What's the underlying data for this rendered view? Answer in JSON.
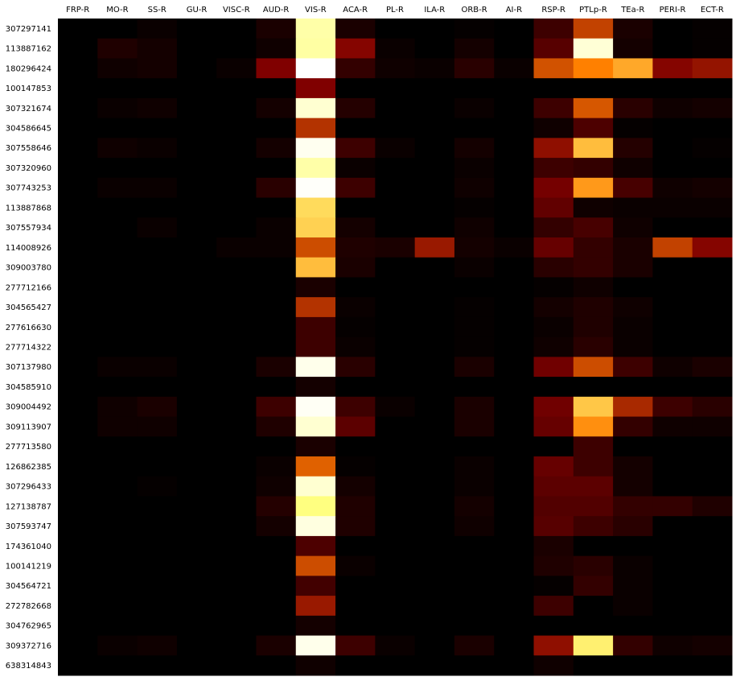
{
  "chart_data": {
    "type": "heatmap",
    "colormap": "afmhot",
    "background": "#000000",
    "columns": [
      "FRP-R",
      "MO-R",
      "SS-R",
      "GU-R",
      "VISC-R",
      "AUD-R",
      "VIS-R",
      "ACA-R",
      "PL-R",
      "ILA-R",
      "ORB-R",
      "AI-R",
      "RSP-R",
      "PTLp-R",
      "TEa-R",
      "PERI-R",
      "ECT-R"
    ],
    "rows": [
      "307297141",
      "113887162",
      "180296424",
      "100147853",
      "307321674",
      "304586645",
      "307558646",
      "307320960",
      "307743253",
      "113887868",
      "307557934",
      "114008926",
      "309003780",
      "277712166",
      "304565427",
      "277616630",
      "277714322",
      "307137980",
      "304585910",
      "309004492",
      "309113907",
      "277713580",
      "126862385",
      "307296433",
      "127138787",
      "307593747",
      "174361040",
      "100141219",
      "304564721",
      "272782668",
      "304762965",
      "309372716",
      "638314843"
    ],
    "values": [
      [
        0.0,
        0.0,
        0.02,
        0.0,
        0.0,
        0.05,
        0.83,
        0.05,
        0.0,
        0.0,
        0.01,
        0.0,
        0.12,
        0.38,
        0.05,
        0.0,
        0.01
      ],
      [
        0.0,
        0.06,
        0.04,
        0.0,
        0.0,
        0.03,
        0.82,
        0.26,
        0.02,
        0.0,
        0.04,
        0.0,
        0.17,
        0.92,
        0.04,
        0.0,
        0.01
      ],
      [
        0.0,
        0.03,
        0.04,
        0.0,
        0.02,
        0.25,
        1.0,
        0.1,
        0.03,
        0.02,
        0.08,
        0.02,
        0.41,
        0.5,
        0.58,
        0.26,
        0.29
      ],
      [
        0.0,
        0.0,
        0.0,
        0.0,
        0.0,
        0.0,
        0.25,
        0.0,
        0.0,
        0.0,
        0.0,
        0.0,
        0.0,
        0.0,
        0.0,
        0.0,
        0.0
      ],
      [
        0.0,
        0.02,
        0.03,
        0.0,
        0.0,
        0.04,
        0.91,
        0.07,
        0.0,
        0.0,
        0.02,
        0.0,
        0.12,
        0.42,
        0.08,
        0.03,
        0.04
      ],
      [
        0.0,
        0.0,
        0.0,
        0.0,
        0.0,
        0.0,
        0.35,
        0.0,
        0.0,
        0.0,
        0.0,
        0.0,
        0.03,
        0.15,
        0.01,
        0.0,
        0.0
      ],
      [
        0.0,
        0.03,
        0.02,
        0.0,
        0.0,
        0.04,
        0.97,
        0.12,
        0.02,
        0.0,
        0.04,
        0.0,
        0.28,
        0.62,
        0.07,
        0.0,
        0.01
      ],
      [
        0.0,
        0.0,
        0.0,
        0.0,
        0.0,
        0.0,
        0.83,
        0.02,
        0.0,
        0.0,
        0.02,
        0.0,
        0.12,
        0.1,
        0.03,
        0.0,
        0.0
      ],
      [
        0.0,
        0.02,
        0.02,
        0.0,
        0.0,
        0.08,
        0.99,
        0.12,
        0.0,
        0.0,
        0.03,
        0.0,
        0.23,
        0.55,
        0.14,
        0.03,
        0.04
      ],
      [
        0.0,
        0.0,
        0.0,
        0.0,
        0.0,
        0.0,
        0.68,
        0.0,
        0.0,
        0.0,
        0.01,
        0.0,
        0.19,
        0.03,
        0.02,
        0.02,
        0.02
      ],
      [
        0.0,
        0.0,
        0.02,
        0.0,
        0.0,
        0.02,
        0.66,
        0.04,
        0.0,
        0.0,
        0.03,
        0.0,
        0.1,
        0.14,
        0.03,
        0.0,
        0.0
      ],
      [
        0.0,
        0.0,
        0.0,
        0.0,
        0.02,
        0.02,
        0.4,
        0.06,
        0.05,
        0.3,
        0.04,
        0.02,
        0.2,
        0.1,
        0.05,
        0.38,
        0.26
      ],
      [
        0.0,
        0.0,
        0.0,
        0.0,
        0.0,
        0.0,
        0.62,
        0.05,
        0.0,
        0.0,
        0.02,
        0.0,
        0.08,
        0.1,
        0.05,
        0.0,
        0.0
      ],
      [
        0.0,
        0.0,
        0.0,
        0.0,
        0.0,
        0.0,
        0.05,
        0.0,
        0.0,
        0.0,
        0.0,
        0.0,
        0.01,
        0.03,
        0.0,
        0.0,
        0.0
      ],
      [
        0.0,
        0.0,
        0.0,
        0.0,
        0.0,
        0.0,
        0.35,
        0.02,
        0.0,
        0.0,
        0.01,
        0.0,
        0.04,
        0.06,
        0.03,
        0.0,
        0.0
      ],
      [
        0.0,
        0.0,
        0.0,
        0.0,
        0.0,
        0.0,
        0.12,
        0.01,
        0.0,
        0.0,
        0.01,
        0.0,
        0.02,
        0.06,
        0.02,
        0.0,
        0.0
      ],
      [
        0.0,
        0.0,
        0.0,
        0.0,
        0.0,
        0.0,
        0.12,
        0.02,
        0.0,
        0.0,
        0.01,
        0.0,
        0.03,
        0.08,
        0.02,
        0.0,
        0.0
      ],
      [
        0.0,
        0.02,
        0.02,
        0.0,
        0.0,
        0.05,
        0.96,
        0.08,
        0.0,
        0.0,
        0.05,
        0.0,
        0.22,
        0.4,
        0.12,
        0.03,
        0.05
      ],
      [
        0.0,
        0.0,
        0.0,
        0.0,
        0.0,
        0.0,
        0.04,
        0.0,
        0.0,
        0.0,
        0.0,
        0.0,
        0.0,
        0.0,
        0.0,
        0.0,
        0.0
      ],
      [
        0.0,
        0.03,
        0.05,
        0.0,
        0.0,
        0.12,
        0.98,
        0.12,
        0.02,
        0.0,
        0.05,
        0.0,
        0.22,
        0.64,
        0.33,
        0.12,
        0.08
      ],
      [
        0.0,
        0.03,
        0.03,
        0.0,
        0.0,
        0.06,
        0.91,
        0.18,
        0.0,
        0.0,
        0.05,
        0.0,
        0.2,
        0.53,
        0.1,
        0.03,
        0.03
      ],
      [
        0.0,
        0.0,
        0.0,
        0.0,
        0.0,
        0.0,
        0.05,
        0.0,
        0.0,
        0.0,
        0.0,
        0.0,
        0.0,
        0.12,
        0.0,
        0.0,
        0.0
      ],
      [
        0.0,
        0.0,
        0.0,
        0.0,
        0.0,
        0.02,
        0.44,
        0.01,
        0.0,
        0.0,
        0.02,
        0.0,
        0.2,
        0.12,
        0.04,
        0.0,
        0.0
      ],
      [
        0.0,
        0.0,
        0.01,
        0.0,
        0.0,
        0.03,
        0.91,
        0.04,
        0.0,
        0.0,
        0.02,
        0.0,
        0.18,
        0.18,
        0.04,
        0.0,
        0.0
      ],
      [
        0.0,
        0.0,
        0.0,
        0.0,
        0.0,
        0.07,
        0.75,
        0.06,
        0.0,
        0.0,
        0.04,
        0.0,
        0.16,
        0.16,
        0.1,
        0.1,
        0.06
      ],
      [
        0.0,
        0.0,
        0.0,
        0.0,
        0.0,
        0.04,
        0.94,
        0.06,
        0.0,
        0.0,
        0.03,
        0.0,
        0.17,
        0.12,
        0.08,
        0.0,
        0.0
      ],
      [
        0.0,
        0.0,
        0.0,
        0.0,
        0.0,
        0.0,
        0.15,
        0.0,
        0.0,
        0.0,
        0.0,
        0.0,
        0.05,
        0.0,
        0.0,
        0.0,
        0.0
      ],
      [
        0.0,
        0.0,
        0.0,
        0.0,
        0.0,
        0.0,
        0.4,
        0.02,
        0.0,
        0.0,
        0.0,
        0.0,
        0.06,
        0.08,
        0.02,
        0.0,
        0.0
      ],
      [
        0.0,
        0.0,
        0.0,
        0.0,
        0.0,
        0.0,
        0.13,
        0.0,
        0.0,
        0.0,
        0.0,
        0.0,
        0.01,
        0.1,
        0.02,
        0.0,
        0.0
      ],
      [
        0.0,
        0.0,
        0.0,
        0.0,
        0.0,
        0.0,
        0.3,
        0.0,
        0.0,
        0.0,
        0.0,
        0.0,
        0.12,
        0.0,
        0.02,
        0.0,
        0.0
      ],
      [
        0.0,
        0.0,
        0.0,
        0.0,
        0.0,
        0.0,
        0.04,
        0.0,
        0.0,
        0.0,
        0.0,
        0.0,
        0.0,
        0.0,
        0.0,
        0.0,
        0.0
      ],
      [
        0.0,
        0.02,
        0.03,
        0.0,
        0.0,
        0.05,
        0.96,
        0.12,
        0.02,
        0.0,
        0.05,
        0.0,
        0.28,
        0.72,
        0.1,
        0.03,
        0.04
      ],
      [
        0.0,
        0.0,
        0.0,
        0.0,
        0.0,
        0.0,
        0.03,
        0.0,
        0.0,
        0.0,
        0.0,
        0.0,
        0.03,
        0.0,
        0.0,
        0.0,
        0.0
      ]
    ]
  }
}
